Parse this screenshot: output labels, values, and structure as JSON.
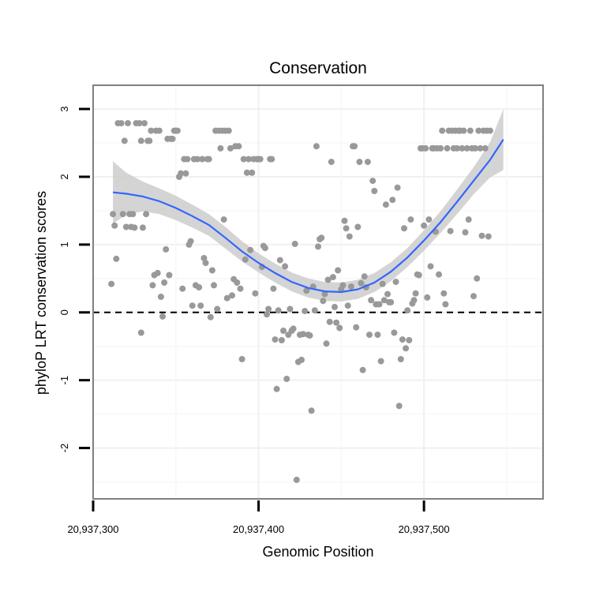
{
  "chart_data": {
    "type": "scatter",
    "title": "Conservation",
    "xlabel": "Genomic Position",
    "ylabel": "phyloP LRT conservation scores",
    "xlim": [
      20937300,
      20937572
    ],
    "ylim": [
      -2.75,
      3.35
    ],
    "xticks": [
      20937300,
      20937400,
      20937500
    ],
    "xtick_labels": [
      "20,937,300",
      "20,937,400",
      "20,937,500"
    ],
    "yticks": [
      -2,
      -1,
      0,
      1,
      2,
      3
    ],
    "ytick_labels": [
      "-2",
      "-1",
      "0",
      "1",
      "2",
      "3"
    ],
    "grid": true,
    "point_color": "#999999",
    "smooth_color": "#3366ff",
    "band_color": "#cccccc",
    "reference_line": {
      "y": 0,
      "style": "dashed",
      "color": "#000000"
    },
    "points": [
      {
        "x": 20937311,
        "y": 0.42
      },
      {
        "x": 20937312,
        "y": 1.45
      },
      {
        "x": 20937313,
        "y": 1.28
      },
      {
        "x": 20937314,
        "y": 0.79
      },
      {
        "x": 20937315,
        "y": 2.79
      },
      {
        "x": 20937317,
        "y": 2.79
      },
      {
        "x": 20937318,
        "y": 1.45
      },
      {
        "x": 20937319,
        "y": 2.53
      },
      {
        "x": 20937320,
        "y": 1.26
      },
      {
        "x": 20937321,
        "y": 2.79
      },
      {
        "x": 20937322,
        "y": 1.45
      },
      {
        "x": 20937323,
        "y": 1.26
      },
      {
        "x": 20937324,
        "y": 1.45
      },
      {
        "x": 20937325,
        "y": 1.25
      },
      {
        "x": 20937326,
        "y": 2.79
      },
      {
        "x": 20937328,
        "y": 2.79
      },
      {
        "x": 20937329,
        "y": -0.3
      },
      {
        "x": 20937329,
        "y": 2.53
      },
      {
        "x": 20937330,
        "y": 1.25
      },
      {
        "x": 20937331,
        "y": 2.79
      },
      {
        "x": 20937332,
        "y": 1.45
      },
      {
        "x": 20937333,
        "y": 2.53
      },
      {
        "x": 20937334,
        "y": 2.53
      },
      {
        "x": 20937335,
        "y": 2.68
      },
      {
        "x": 20937336,
        "y": 0.4
      },
      {
        "x": 20937337,
        "y": 0.55
      },
      {
        "x": 20937338,
        "y": 2.68
      },
      {
        "x": 20937339,
        "y": 0.58
      },
      {
        "x": 20937340,
        "y": 2.68
      },
      {
        "x": 20937341,
        "y": 0.23
      },
      {
        "x": 20937342,
        "y": -0.06
      },
      {
        "x": 20937343,
        "y": 0.44
      },
      {
        "x": 20937344,
        "y": 0.93
      },
      {
        "x": 20937345,
        "y": 2.56
      },
      {
        "x": 20937346,
        "y": 0.55
      },
      {
        "x": 20937347,
        "y": 2.56
      },
      {
        "x": 20937348,
        "y": 2.56
      },
      {
        "x": 20937349,
        "y": 2.68
      },
      {
        "x": 20937350,
        "y": 2.68
      },
      {
        "x": 20937351,
        "y": 2.68
      },
      {
        "x": 20937352,
        "y": 2.0
      },
      {
        "x": 20937353,
        "y": 2.05
      },
      {
        "x": 20937354,
        "y": 0.35
      },
      {
        "x": 20937355,
        "y": 2.26
      },
      {
        "x": 20937356,
        "y": 2.05
      },
      {
        "x": 20937357,
        "y": 2.26
      },
      {
        "x": 20937358,
        "y": 1.0
      },
      {
        "x": 20937359,
        "y": 1.05
      },
      {
        "x": 20937360,
        "y": 0.1
      },
      {
        "x": 20937361,
        "y": 2.26
      },
      {
        "x": 20937362,
        "y": 0.4
      },
      {
        "x": 20937363,
        "y": 2.26
      },
      {
        "x": 20937364,
        "y": 0.37
      },
      {
        "x": 20937365,
        "y": 0.1
      },
      {
        "x": 20937366,
        "y": 2.26
      },
      {
        "x": 20937367,
        "y": 0.8
      },
      {
        "x": 20937368,
        "y": 0.73
      },
      {
        "x": 20937369,
        "y": 2.26
      },
      {
        "x": 20937370,
        "y": 2.26
      },
      {
        "x": 20937371,
        "y": -0.07
      },
      {
        "x": 20937372,
        "y": 0.62
      },
      {
        "x": 20937373,
        "y": 0.4
      },
      {
        "x": 20937374,
        "y": 2.68
      },
      {
        "x": 20937375,
        "y": 0.05
      },
      {
        "x": 20937376,
        "y": 2.68
      },
      {
        "x": 20937377,
        "y": 2.42
      },
      {
        "x": 20937378,
        "y": 2.68
      },
      {
        "x": 20937379,
        "y": 1.37
      },
      {
        "x": 20937380,
        "y": 2.68
      },
      {
        "x": 20937381,
        "y": 0.21
      },
      {
        "x": 20937382,
        "y": 2.68
      },
      {
        "x": 20937383,
        "y": 2.42
      },
      {
        "x": 20937384,
        "y": 0.25
      },
      {
        "x": 20937385,
        "y": 0.49
      },
      {
        "x": 20937386,
        "y": 2.45
      },
      {
        "x": 20937387,
        "y": 0.44
      },
      {
        "x": 20937388,
        "y": 2.45
      },
      {
        "x": 20937389,
        "y": 0.35
      },
      {
        "x": 20937390,
        "y": -0.69
      },
      {
        "x": 20937391,
        "y": 2.26
      },
      {
        "x": 20937392,
        "y": 0.78
      },
      {
        "x": 20937393,
        "y": 2.06
      },
      {
        "x": 20937394,
        "y": 2.26
      },
      {
        "x": 20937395,
        "y": 0.92
      },
      {
        "x": 20937396,
        "y": 2.06
      },
      {
        "x": 20937397,
        "y": 2.26
      },
      {
        "x": 20937398,
        "y": 0.28
      },
      {
        "x": 20937399,
        "y": 2.26
      },
      {
        "x": 20937400,
        "y": 2.26
      },
      {
        "x": 20937401,
        "y": 2.26
      },
      {
        "x": 20937402,
        "y": 0.67
      },
      {
        "x": 20937403,
        "y": 0.98
      },
      {
        "x": 20937404,
        "y": 0.95
      },
      {
        "x": 20937405,
        "y": -0.03
      },
      {
        "x": 20937406,
        "y": 0.05
      },
      {
        "x": 20937407,
        "y": 2.26
      },
      {
        "x": 20937408,
        "y": 2.26
      },
      {
        "x": 20937409,
        "y": 0.35
      },
      {
        "x": 20937410,
        "y": -0.4
      },
      {
        "x": 20937411,
        "y": -1.13
      },
      {
        "x": 20937412,
        "y": 0.03
      },
      {
        "x": 20937413,
        "y": 0.77
      },
      {
        "x": 20937414,
        "y": -0.41
      },
      {
        "x": 20937415,
        "y": -0.27
      },
      {
        "x": 20937416,
        "y": 0.68
      },
      {
        "x": 20937417,
        "y": -0.98
      },
      {
        "x": 20937418,
        "y": -0.33
      },
      {
        "x": 20937419,
        "y": 0.05
      },
      {
        "x": 20937420,
        "y": -0.27
      },
      {
        "x": 20937421,
        "y": -0.24
      },
      {
        "x": 20937422,
        "y": 1.01
      },
      {
        "x": 20937423,
        "y": -2.47
      },
      {
        "x": 20937424,
        "y": -0.73
      },
      {
        "x": 20937425,
        "y": -0.33
      },
      {
        "x": 20937426,
        "y": -0.7
      },
      {
        "x": 20937427,
        "y": -0.32
      },
      {
        "x": 20937428,
        "y": 0.02
      },
      {
        "x": 20937429,
        "y": 0.32
      },
      {
        "x": 20937430,
        "y": -0.33
      },
      {
        "x": 20937431,
        "y": -0.34
      },
      {
        "x": 20937432,
        "y": -1.45
      },
      {
        "x": 20937433,
        "y": 0.38
      },
      {
        "x": 20937434,
        "y": 0.03
      },
      {
        "x": 20937435,
        "y": 2.45
      },
      {
        "x": 20937436,
        "y": 0.97
      },
      {
        "x": 20937437,
        "y": 1.08
      },
      {
        "x": 20937438,
        "y": 1.1
      },
      {
        "x": 20937439,
        "y": 0.17
      },
      {
        "x": 20937440,
        "y": 0.27
      },
      {
        "x": 20937441,
        "y": -0.46
      },
      {
        "x": 20937442,
        "y": 0.48
      },
      {
        "x": 20937443,
        "y": -0.14
      },
      {
        "x": 20937444,
        "y": 2.22
      },
      {
        "x": 20937445,
        "y": 0.52
      },
      {
        "x": 20937446,
        "y": 0.08
      },
      {
        "x": 20937447,
        "y": -0.15
      },
      {
        "x": 20937448,
        "y": 0.62
      },
      {
        "x": 20937449,
        "y": -0.23
      },
      {
        "x": 20937450,
        "y": 0.34
      },
      {
        "x": 20937451,
        "y": 0.4
      },
      {
        "x": 20937452,
        "y": 1.35
      },
      {
        "x": 20937453,
        "y": 1.24
      },
      {
        "x": 20937454,
        "y": 0.1
      },
      {
        "x": 20937455,
        "y": 1.12
      },
      {
        "x": 20937456,
        "y": 0.38
      },
      {
        "x": 20937457,
        "y": 2.45
      },
      {
        "x": 20937458,
        "y": 2.45
      },
      {
        "x": 20937459,
        "y": -0.22
      },
      {
        "x": 20937460,
        "y": 1.26
      },
      {
        "x": 20937461,
        "y": 2.22
      },
      {
        "x": 20937462,
        "y": 0.43
      },
      {
        "x": 20937463,
        "y": -0.85
      },
      {
        "x": 20937464,
        "y": 0.53
      },
      {
        "x": 20937465,
        "y": 0.37
      },
      {
        "x": 20937466,
        "y": 2.22
      },
      {
        "x": 20937467,
        "y": -0.33
      },
      {
        "x": 20937468,
        "y": 0.18
      },
      {
        "x": 20937469,
        "y": 1.94
      },
      {
        "x": 20937470,
        "y": 1.79
      },
      {
        "x": 20937471,
        "y": 0.12
      },
      {
        "x": 20937472,
        "y": -0.33
      },
      {
        "x": 20937473,
        "y": 0.12
      },
      {
        "x": 20937474,
        "y": -0.72
      },
      {
        "x": 20937475,
        "y": 0.42
      },
      {
        "x": 20937476,
        "y": 0.18
      },
      {
        "x": 20937477,
        "y": 1.59
      },
      {
        "x": 20937478,
        "y": 0.27
      },
      {
        "x": 20937479,
        "y": 0.15
      },
      {
        "x": 20937480,
        "y": 0.15
      },
      {
        "x": 20937481,
        "y": 1.66
      },
      {
        "x": 20937482,
        "y": -0.3
      },
      {
        "x": 20937483,
        "y": 0.45
      },
      {
        "x": 20937484,
        "y": 1.84
      },
      {
        "x": 20937485,
        "y": -1.38
      },
      {
        "x": 20937486,
        "y": -0.69
      },
      {
        "x": 20937487,
        "y": -0.4
      },
      {
        "x": 20937488,
        "y": 1.24
      },
      {
        "x": 20937489,
        "y": -0.53
      },
      {
        "x": 20937490,
        "y": 0.03
      },
      {
        "x": 20937491,
        "y": -0.41
      },
      {
        "x": 20937492,
        "y": 1.37
      },
      {
        "x": 20937493,
        "y": 0.13
      },
      {
        "x": 20937494,
        "y": 0.18
      },
      {
        "x": 20937495,
        "y": 0.28
      },
      {
        "x": 20937496,
        "y": 0.56
      },
      {
        "x": 20937497,
        "y": 0.55
      },
      {
        "x": 20937498,
        "y": 2.42
      },
      {
        "x": 20937499,
        "y": 2.42
      },
      {
        "x": 20937500,
        "y": 1.28
      },
      {
        "x": 20937501,
        "y": 2.42
      },
      {
        "x": 20937502,
        "y": 0.22
      },
      {
        "x": 20937503,
        "y": 1.37
      },
      {
        "x": 20937504,
        "y": 0.68
      },
      {
        "x": 20937505,
        "y": 2.42
      },
      {
        "x": 20937506,
        "y": 2.42
      },
      {
        "x": 20937507,
        "y": 1.19
      },
      {
        "x": 20937508,
        "y": 2.42
      },
      {
        "x": 20937509,
        "y": 0.56
      },
      {
        "x": 20937510,
        "y": 2.42
      },
      {
        "x": 20937511,
        "y": 2.68
      },
      {
        "x": 20937512,
        "y": 0.28
      },
      {
        "x": 20937513,
        "y": 0.12
      },
      {
        "x": 20937514,
        "y": 2.42
      },
      {
        "x": 20937515,
        "y": 2.68
      },
      {
        "x": 20937516,
        "y": 1.2
      },
      {
        "x": 20937517,
        "y": 2.68
      },
      {
        "x": 20937518,
        "y": 2.42
      },
      {
        "x": 20937519,
        "y": 2.68
      },
      {
        "x": 20937520,
        "y": 2.42
      },
      {
        "x": 20937521,
        "y": 2.68
      },
      {
        "x": 20937522,
        "y": 2.68
      },
      {
        "x": 20937523,
        "y": 2.42
      },
      {
        "x": 20937524,
        "y": 2.68
      },
      {
        "x": 20937525,
        "y": 1.18
      },
      {
        "x": 20937526,
        "y": 2.42
      },
      {
        "x": 20937527,
        "y": 1.37
      },
      {
        "x": 20937528,
        "y": 2.68
      },
      {
        "x": 20937529,
        "y": 2.42
      },
      {
        "x": 20937530,
        "y": 0.24
      },
      {
        "x": 20937531,
        "y": 2.42
      },
      {
        "x": 20937532,
        "y": 0.5
      },
      {
        "x": 20937533,
        "y": 2.68
      },
      {
        "x": 20937534,
        "y": 2.42
      },
      {
        "x": 20937535,
        "y": 1.13
      },
      {
        "x": 20937536,
        "y": 2.68
      },
      {
        "x": 20937537,
        "y": 2.42
      },
      {
        "x": 20937538,
        "y": 2.68
      },
      {
        "x": 20937539,
        "y": 1.12
      },
      {
        "x": 20937540,
        "y": 2.68
      }
    ],
    "smooth": [
      {
        "x": 20937312,
        "y": 1.77,
        "lo": 1.31,
        "hi": 2.23
      },
      {
        "x": 20937320,
        "y": 1.75,
        "lo": 1.44,
        "hi": 2.06
      },
      {
        "x": 20937330,
        "y": 1.71,
        "lo": 1.49,
        "hi": 1.93
      },
      {
        "x": 20937340,
        "y": 1.64,
        "lo": 1.45,
        "hi": 1.83
      },
      {
        "x": 20937350,
        "y": 1.54,
        "lo": 1.36,
        "hi": 1.72
      },
      {
        "x": 20937360,
        "y": 1.42,
        "lo": 1.25,
        "hi": 1.59
      },
      {
        "x": 20937370,
        "y": 1.29,
        "lo": 1.13,
        "hi": 1.45
      },
      {
        "x": 20937380,
        "y": 1.1,
        "lo": 0.94,
        "hi": 1.26
      },
      {
        "x": 20937390,
        "y": 0.9,
        "lo": 0.75,
        "hi": 1.05
      },
      {
        "x": 20937400,
        "y": 0.73,
        "lo": 0.59,
        "hi": 0.87
      },
      {
        "x": 20937410,
        "y": 0.58,
        "lo": 0.44,
        "hi": 0.72
      },
      {
        "x": 20937420,
        "y": 0.45,
        "lo": 0.31,
        "hi": 0.59
      },
      {
        "x": 20937430,
        "y": 0.36,
        "lo": 0.22,
        "hi": 0.5
      },
      {
        "x": 20937440,
        "y": 0.31,
        "lo": 0.17,
        "hi": 0.45
      },
      {
        "x": 20937450,
        "y": 0.3,
        "lo": 0.16,
        "hi": 0.44
      },
      {
        "x": 20937460,
        "y": 0.34,
        "lo": 0.2,
        "hi": 0.48
      },
      {
        "x": 20937470,
        "y": 0.44,
        "lo": 0.3,
        "hi": 0.58
      },
      {
        "x": 20937480,
        "y": 0.6,
        "lo": 0.46,
        "hi": 0.74
      },
      {
        "x": 20937490,
        "y": 0.81,
        "lo": 0.67,
        "hi": 0.95
      },
      {
        "x": 20937500,
        "y": 1.06,
        "lo": 0.91,
        "hi": 1.21
      },
      {
        "x": 20937510,
        "y": 1.33,
        "lo": 1.17,
        "hi": 1.49
      },
      {
        "x": 20937520,
        "y": 1.63,
        "lo": 1.45,
        "hi": 1.81
      },
      {
        "x": 20937530,
        "y": 1.94,
        "lo": 1.74,
        "hi": 2.14
      },
      {
        "x": 20937540,
        "y": 2.25,
        "lo": 1.99,
        "hi": 2.51
      },
      {
        "x": 20937548,
        "y": 2.55,
        "lo": 2.1,
        "hi": 3.0
      }
    ]
  }
}
